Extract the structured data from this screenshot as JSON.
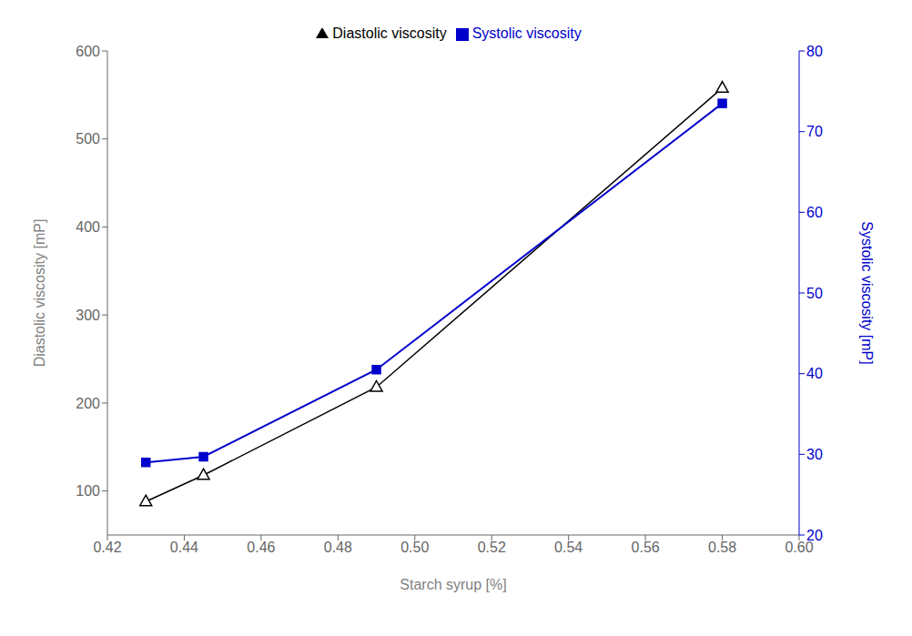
{
  "chart_data": {
    "type": "line",
    "x": [
      0.43,
      0.445,
      0.49,
      0.58
    ],
    "xlabel": "Starch syrup [%]",
    "ylabel": "Diastolic viscosity [mP]",
    "y2label": "Systolic viscosity [mP]",
    "xlim": [
      0.42,
      0.6
    ],
    "xticks": [
      0.42,
      0.44,
      0.46,
      0.48,
      {
        "value": 0.5,
        "label": "0.50"
      },
      0.52,
      0.54,
      0.56,
      0.58,
      {
        "value": 0.6,
        "label": "0.60"
      }
    ],
    "ylim": [
      50,
      600
    ],
    "yticks": [
      100,
      200,
      300,
      400,
      500,
      600
    ],
    "y2lim": [
      20,
      80
    ],
    "y2ticks": [
      20,
      30,
      40,
      50,
      60,
      70,
      80
    ],
    "grid": false,
    "legend": "top",
    "series": [
      {
        "name": "Diastolic viscosity",
        "color": "#000000",
        "marker": "triangle",
        "values": [
          88,
          118,
          218,
          558
        ]
      },
      {
        "name": "Systolic viscosity",
        "color": "#0000cc",
        "marker": "square",
        "axis": "y2",
        "values": [
          29.0,
          29.7,
          40.5,
          73.5
        ]
      }
    ]
  }
}
